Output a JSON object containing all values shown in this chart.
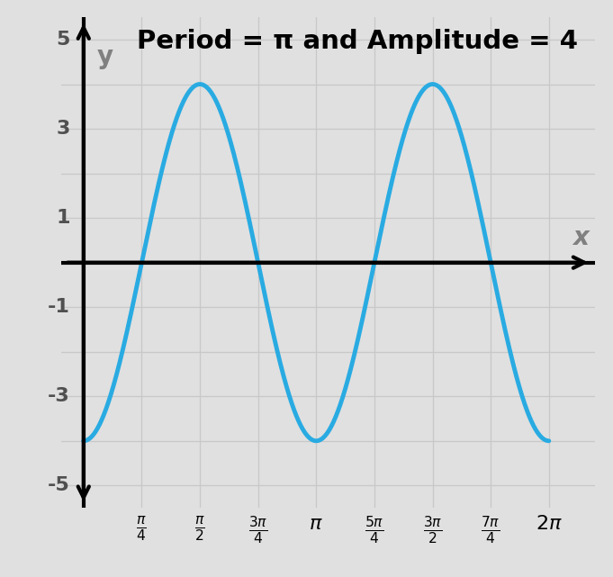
{
  "title": "Period = π and Amplitude = 4",
  "curve_color": "#29ABE2",
  "curve_linewidth": 3.5,
  "amplitude": -4,
  "frequency": 2,
  "x_start": 0,
  "x_end": 6.283185307179586,
  "xlim": [
    -0.3,
    6.9
  ],
  "ylim": [
    -5.5,
    5.5
  ],
  "ytick_vals": [
    -5,
    -3,
    -1,
    1,
    3,
    5
  ],
  "ytick_labels": [
    "-5",
    "-3",
    "-1",
    "1",
    "3",
    "5"
  ],
  "grid_color": "#c8c8c8",
  "background_color": "#e0e0e0",
  "ylabel": "y",
  "xlabel": "x",
  "title_fontsize": 21,
  "axis_label_fontsize": 20,
  "tick_fontsize": 16,
  "arrow_lw": 3.0,
  "axis_lw": 3.0
}
